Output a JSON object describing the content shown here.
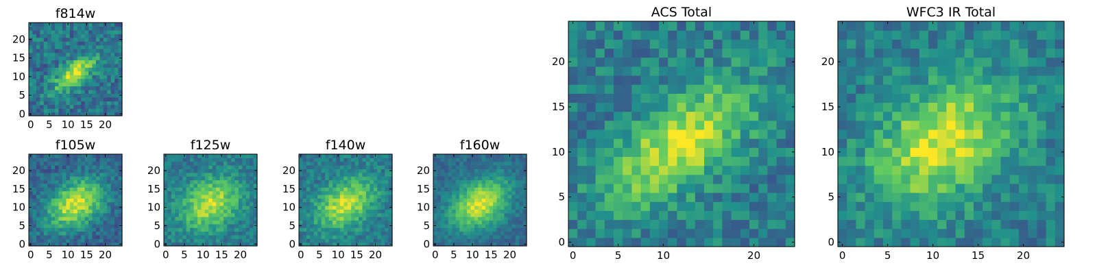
{
  "figure": {
    "colormap": "viridis",
    "colormap_stops": [
      "#440154",
      "#3b528b",
      "#21918c",
      "#5ec962",
      "#fde725"
    ],
    "frame_color": "#000000",
    "background": "#ffffff"
  },
  "chart_data": [
    {
      "type": "heatmap",
      "title": "f814w",
      "image_shape": [
        25,
        25
      ],
      "xlim": [
        0,
        24
      ],
      "ylim": [
        0,
        24
      ],
      "xticks": [
        0,
        5,
        10,
        15,
        20
      ],
      "yticks": [
        0,
        5,
        10,
        15,
        20
      ],
      "source": {
        "center_x": 12,
        "center_y": 11,
        "sigma_major": 5.0,
        "sigma_minor": 2.0,
        "angle_deg": 40,
        "peak": 0.95,
        "background": 0.38,
        "noise": 0.16,
        "seed": 11
      }
    },
    {
      "type": "heatmap",
      "title": "f105w",
      "image_shape": [
        25,
        25
      ],
      "xlim": [
        0,
        24
      ],
      "ylim": [
        0,
        24
      ],
      "xticks": [
        0,
        5,
        10,
        15,
        20
      ],
      "yticks": [
        0,
        5,
        10,
        15,
        20
      ],
      "source": {
        "center_x": 12,
        "center_y": 11,
        "sigma_major": 6.0,
        "sigma_minor": 4.0,
        "angle_deg": 35,
        "peak": 0.95,
        "background": 0.32,
        "noise": 0.12,
        "seed": 23
      }
    },
    {
      "type": "heatmap",
      "title": "f125w",
      "image_shape": [
        25,
        25
      ],
      "xlim": [
        0,
        24
      ],
      "ylim": [
        0,
        24
      ],
      "xticks": [
        0,
        5,
        10,
        15,
        20
      ],
      "yticks": [
        0,
        5,
        10,
        15,
        20
      ],
      "source": {
        "center_x": 12,
        "center_y": 11,
        "sigma_major": 6.0,
        "sigma_minor": 4.5,
        "angle_deg": 35,
        "peak": 0.9,
        "background": 0.4,
        "noise": 0.12,
        "seed": 37
      }
    },
    {
      "type": "heatmap",
      "title": "f140w",
      "image_shape": [
        25,
        25
      ],
      "xlim": [
        0,
        24
      ],
      "ylim": [
        0,
        24
      ],
      "xticks": [
        0,
        5,
        10,
        15,
        20
      ],
      "yticks": [
        0,
        5,
        10,
        15,
        20
      ],
      "source": {
        "center_x": 12,
        "center_y": 11,
        "sigma_major": 6.0,
        "sigma_minor": 4.0,
        "angle_deg": 35,
        "peak": 0.92,
        "background": 0.4,
        "noise": 0.12,
        "seed": 41
      }
    },
    {
      "type": "heatmap",
      "title": "f160w",
      "image_shape": [
        25,
        25
      ],
      "xlim": [
        0,
        24
      ],
      "ylim": [
        0,
        24
      ],
      "xticks": [
        0,
        5,
        10,
        15,
        20
      ],
      "yticks": [
        0,
        5,
        10,
        15,
        20
      ],
      "source": {
        "center_x": 12,
        "center_y": 11,
        "sigma_major": 6.0,
        "sigma_minor": 4.0,
        "angle_deg": 35,
        "peak": 0.95,
        "background": 0.35,
        "noise": 0.09,
        "seed": 53
      }
    },
    {
      "type": "heatmap",
      "title": "ACS Total",
      "image_shape": [
        25,
        25
      ],
      "xlim": [
        0,
        24
      ],
      "ylim": [
        0,
        24
      ],
      "xticks": [
        0,
        5,
        10,
        20
      ],
      "yticks": [
        0,
        5,
        10,
        15,
        20
      ],
      "source": {
        "center_x": 12,
        "center_y": 11,
        "sigma_major": 6.5,
        "sigma_minor": 3.0,
        "angle_deg": 38,
        "peak": 0.95,
        "background": 0.42,
        "noise": 0.15,
        "seed": 67
      }
    },
    {
      "type": "heatmap",
      "title": "WFC3 IR Total",
      "image_shape": [
        25,
        25
      ],
      "xlim": [
        0,
        24
      ],
      "ylim": [
        0,
        24
      ],
      "xticks": [
        0,
        5,
        10,
        15,
        20
      ],
      "yticks": [
        0,
        5,
        10,
        15,
        20
      ],
      "source": {
        "center_x": 11,
        "center_y": 11,
        "sigma_major": 6.0,
        "sigma_minor": 4.0,
        "angle_deg": 35,
        "peak": 0.95,
        "background": 0.42,
        "noise": 0.14,
        "seed": 79
      }
    }
  ]
}
